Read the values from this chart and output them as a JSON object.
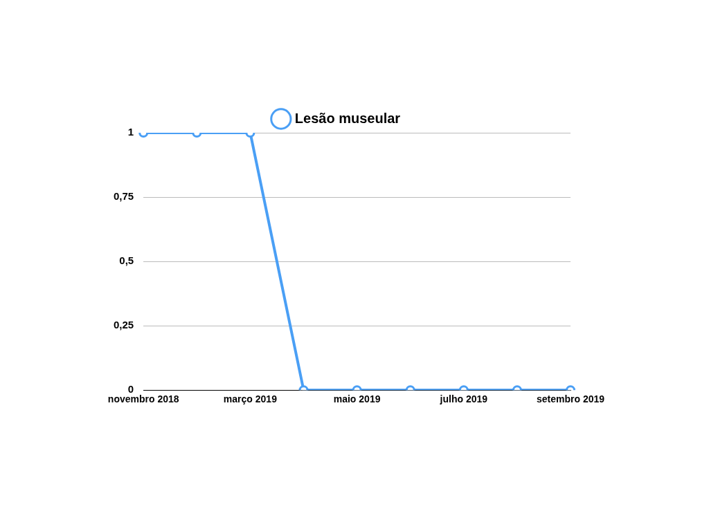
{
  "chart_data": {
    "type": "line",
    "categories": [
      "novembro 2018",
      null,
      "março 2019",
      null,
      "maio 2019",
      null,
      "julho 2019",
      null,
      "setembro 2019"
    ],
    "series": [
      {
        "name": "Lesão museular",
        "color": "#4a9ff5",
        "values": [
          1,
          1,
          1,
          0,
          0,
          0,
          0,
          0,
          0
        ]
      }
    ],
    "ylim": [
      0,
      1
    ],
    "yticks": [
      0,
      {
        "value": 0.25,
        "label": "0,25"
      },
      {
        "value": 0.5,
        "label": "0,5"
      },
      {
        "value": 0.75,
        "label": "0,75"
      },
      1
    ],
    "grid": "y",
    "legend": "top",
    "marker": "circle",
    "line_style": "solid"
  }
}
